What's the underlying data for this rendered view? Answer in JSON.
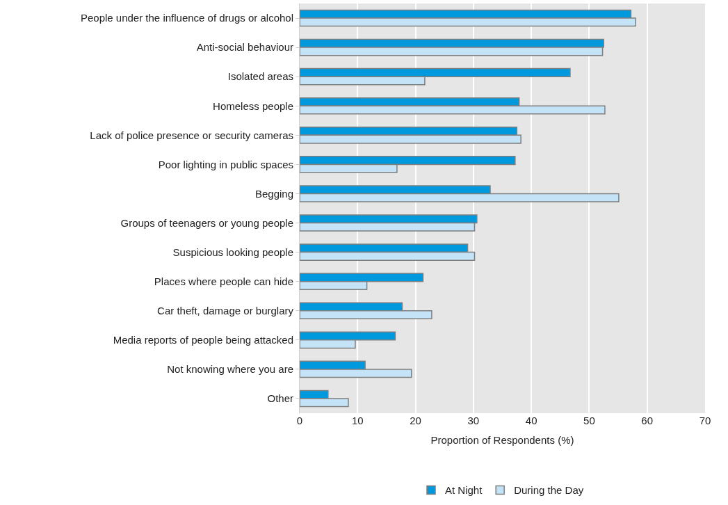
{
  "chart_data": {
    "type": "bar",
    "orientation": "horizontal",
    "categories": [
      "People under the influence of drugs or alcohol",
      "Anti-social behaviour",
      "Isolated areas",
      "Homeless people",
      "Lack of police presence or security cameras",
      "Poor lighting in public spaces",
      "Begging",
      "Groups of teenagers or young people",
      "Suspicious looking people",
      "Places where people can hide",
      "Car theft, damage or burglary",
      "Media reports of people being attacked",
      "Not knowing where you are",
      "Other"
    ],
    "series": [
      {
        "name": "At Night",
        "color": "#0099dd",
        "values": [
          57.2,
          52.5,
          46.7,
          37.9,
          37.5,
          37.2,
          32.9,
          30.6,
          29.0,
          21.3,
          17.7,
          16.5,
          11.3,
          4.9
        ]
      },
      {
        "name": "During the Day",
        "color": "#c5e3f7",
        "values": [
          58.0,
          52.3,
          21.6,
          52.7,
          38.2,
          16.8,
          55.1,
          30.2,
          30.2,
          11.6,
          22.8,
          9.6,
          19.3,
          8.4
        ]
      }
    ],
    "xlabel": "Proportion of Respondents (%)",
    "xlim": [
      0,
      70
    ],
    "xticks": [
      0,
      10,
      20,
      30,
      40,
      50,
      60,
      70
    ],
    "grid": "x",
    "legend": "bottom"
  }
}
